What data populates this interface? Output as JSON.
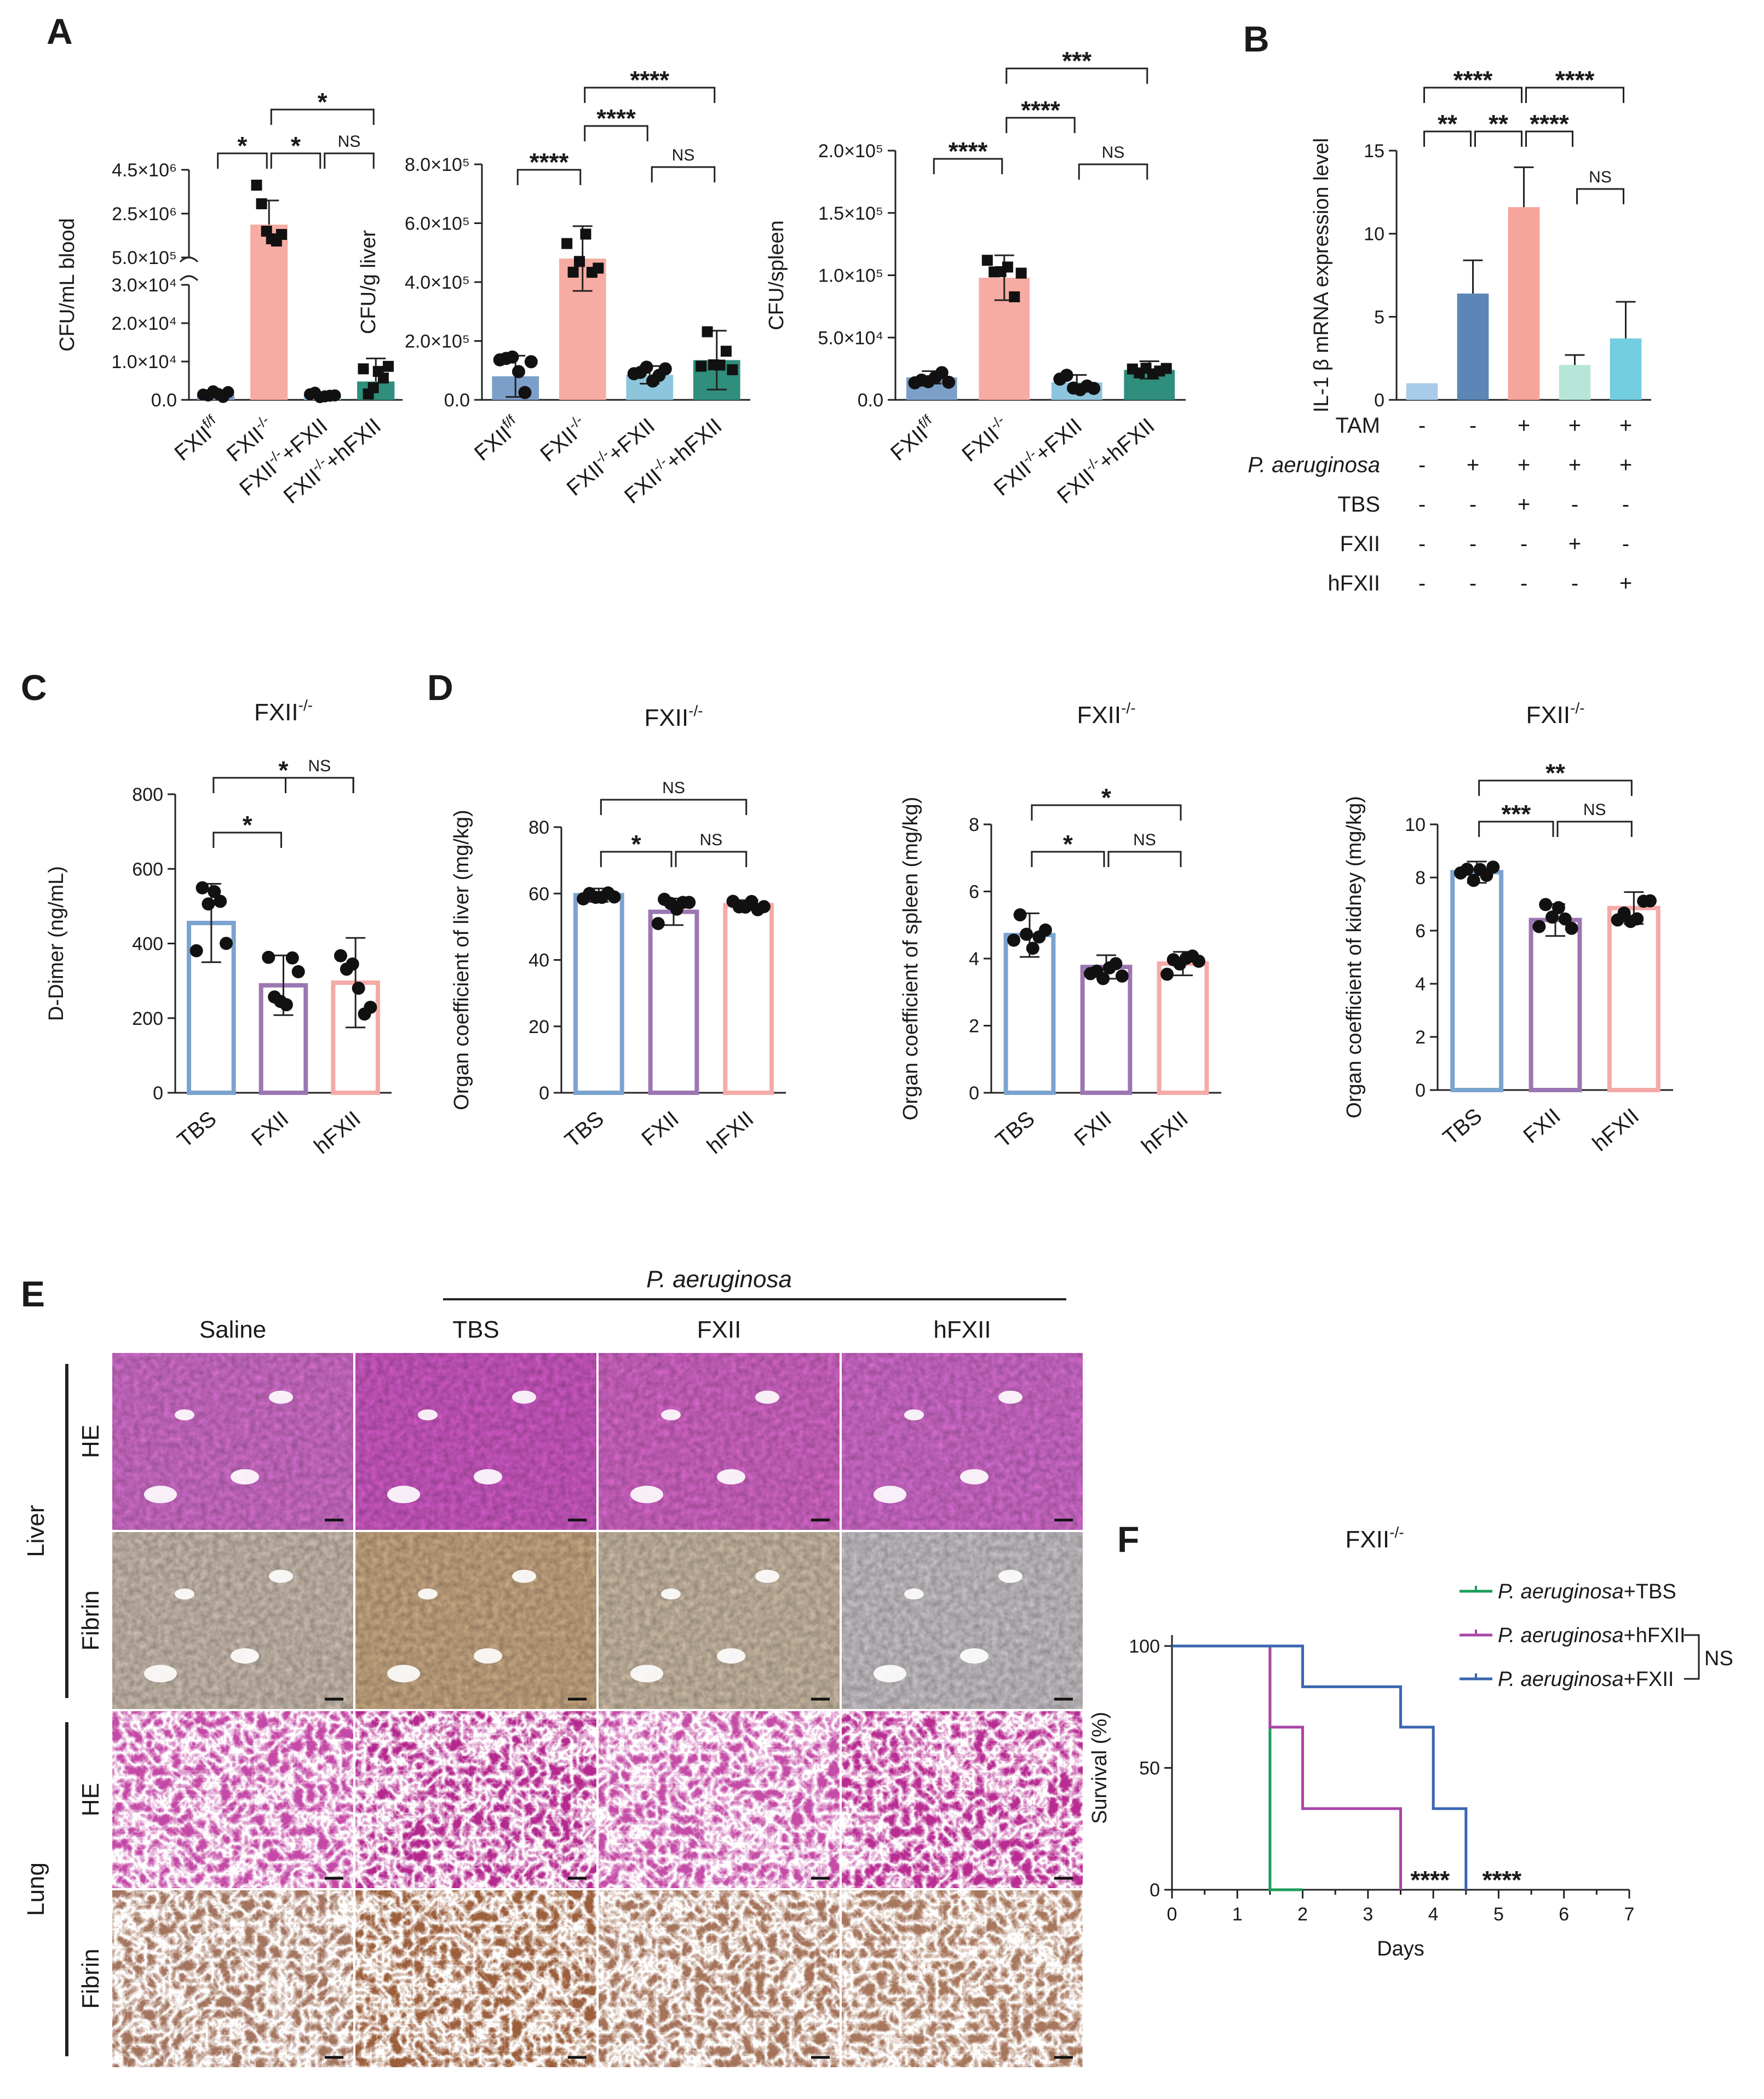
{
  "panel_letters": {
    "A": "A",
    "B": "B",
    "C": "C",
    "D": "D",
    "E": "E",
    "F": "F"
  },
  "chart_data": [
    {
      "id": "A1",
      "type": "bar",
      "ylabel": "CFU/mL blood",
      "categories": [
        "FXIIf/f",
        "FXII-/-",
        "FXII-/-+FXII",
        "FXII-/-+hFXII"
      ],
      "values": [
        1500,
        2000000,
        1200,
        4800
      ],
      "errors": [
        1000,
        1100000,
        800,
        6000
      ],
      "yaxis": "broken",
      "ylim_lower": [
        0,
        30000
      ],
      "ylim_upper": [
        500000,
        4500000
      ],
      "yticks_lower": [
        "0.0",
        "1.0×10⁴",
        "2.0×10⁴",
        "3.0×10⁴"
      ],
      "yticks_upper": [
        "5.0×10⁵",
        "2.5×10⁶",
        "4.5×10⁶"
      ],
      "colors": [
        "#7c9fc9",
        "#f7aca3",
        "#8dc5dc",
        "#2f8f7c"
      ],
      "sig": [
        {
          "a": 0,
          "b": 1,
          "label": "*"
        },
        {
          "a": 1,
          "b": 2,
          "label": "*"
        },
        {
          "a": 2,
          "b": 3,
          "label": "NS"
        },
        {
          "a": 1,
          "b": 3,
          "label": "*"
        }
      ]
    },
    {
      "id": "A2",
      "type": "bar",
      "ylabel": "CFU/g liver",
      "categories": [
        "FXIIf/f",
        "FXII-/-",
        "FXII-/-+FXII",
        "FXII-/-+hFXII"
      ],
      "values": [
        80000,
        480000,
        85000,
        135000
      ],
      "errors": [
        70000,
        110000,
        30000,
        100000
      ],
      "ylim": [
        0,
        800000
      ],
      "yticks": [
        "0.0",
        "2.0×10⁵",
        "4.0×10⁵",
        "6.0×10⁵",
        "8.0×10⁵"
      ],
      "colors": [
        "#7c9fc9",
        "#f7aca3",
        "#8dc5dc",
        "#2f8f7c"
      ],
      "sig": [
        {
          "a": 0,
          "b": 1,
          "label": "****"
        },
        {
          "a": 1,
          "b": 2,
          "label": "****"
        },
        {
          "a": 2,
          "b": 3,
          "label": "NS"
        },
        {
          "a": 1,
          "b": 3,
          "label": "****"
        }
      ]
    },
    {
      "id": "A3",
      "type": "bar",
      "ylabel": "CFU/spleen",
      "categories": [
        "FXIIf/f",
        "FXII-/-",
        "FXII-/-+FXII",
        "FXII-/-+hFXII"
      ],
      "values": [
        18000,
        98000,
        14000,
        24000
      ],
      "errors": [
        5000,
        18000,
        6000,
        7000
      ],
      "ylim": [
        0,
        200000
      ],
      "yticks": [
        "0.0",
        "5.0×10⁴",
        "1.0×10⁵",
        "1.5×10⁵",
        "2.0×10⁵"
      ],
      "colors": [
        "#7c9fc9",
        "#f7aca3",
        "#8dc5dc",
        "#2f8f7c"
      ],
      "sig": [
        {
          "a": 0,
          "b": 1,
          "label": "****"
        },
        {
          "a": 1,
          "b": 2,
          "label": "****"
        },
        {
          "a": 2,
          "b": 3,
          "label": "NS"
        },
        {
          "a": 1,
          "b": 3,
          "label": "***"
        }
      ]
    },
    {
      "id": "B",
      "type": "bar",
      "ylabel": "IL-1 β mRNA expression level",
      "ylim": [
        0,
        15
      ],
      "yticks": [
        "0",
        "5",
        "10",
        "15"
      ],
      "values": [
        1,
        6.4,
        11.6,
        2.1,
        3.7
      ],
      "errors": [
        0,
        2,
        2.4,
        0.6,
        2.2
      ],
      "colors": [
        "#a8cbe9",
        "#5b86b5",
        "#f7a49a",
        "#b5e6d8",
        "#73cde1"
      ],
      "conditions": [
        {
          "name": "TAM",
          "signs": [
            "-",
            "-",
            "+",
            "+",
            "+"
          ]
        },
        {
          "name": "P. aeruginosa",
          "signs": [
            "-",
            "+",
            "+",
            "+",
            "+"
          ]
        },
        {
          "name": "TBS",
          "signs": [
            "-",
            "-",
            "+",
            "-",
            "-"
          ]
        },
        {
          "name": "FXII",
          "signs": [
            "-",
            "-",
            "-",
            "+",
            "-"
          ]
        },
        {
          "name": "hFXII",
          "signs": [
            "-",
            "-",
            "-",
            "-",
            "+"
          ]
        }
      ],
      "sig": [
        {
          "a": 0,
          "b": 1,
          "label": "**"
        },
        {
          "a": 1,
          "b": 2,
          "label": "**"
        },
        {
          "a": 2,
          "b": 3,
          "label": "****"
        },
        {
          "a": 3,
          "b": 4,
          "label": "NS"
        },
        {
          "a": 0,
          "b": 2,
          "label": "****"
        },
        {
          "a": 2,
          "b": 4,
          "label": "****"
        }
      ]
    },
    {
      "id": "C",
      "type": "bar",
      "title": "FXII-/-",
      "ylabel": "D-Dimer (ng/mL)",
      "categories": [
        "TBS",
        "FXII",
        "hFXII"
      ],
      "values": [
        455,
        288,
        295
      ],
      "errors": [
        105,
        80,
        120
      ],
      "ylim": [
        0,
        800
      ],
      "yticks": [
        "0",
        "200",
        "400",
        "600",
        "800"
      ],
      "colors": [
        "#7ba3cf",
        "#9c76b3",
        "#f4aaa6"
      ],
      "sig": [
        {
          "a": 0,
          "b": 1,
          "label": "*"
        },
        {
          "a": 1,
          "b": 2,
          "label": "NS"
        },
        {
          "a": 0,
          "b": 2,
          "label": "*"
        }
      ]
    },
    {
      "id": "D1",
      "type": "bar",
      "title": "FXII-/-",
      "ylabel": "Organ coefficient of liver (mg/kg)",
      "categories": [
        "TBS",
        "FXII",
        "hFXII"
      ],
      "values": [
        59.5,
        54.5,
        56.5
      ],
      "errors": [
        2,
        4,
        1.5
      ],
      "ylim": [
        0,
        80
      ],
      "yticks": [
        "0",
        "20",
        "40",
        "60",
        "80"
      ],
      "colors": [
        "#7ba3cf",
        "#9c76b3",
        "#f4aaa6"
      ],
      "sig": [
        {
          "a": 0,
          "b": 1,
          "label": "*"
        },
        {
          "a": 1,
          "b": 2,
          "label": "NS"
        },
        {
          "a": 0,
          "b": 2,
          "label": "NS"
        }
      ]
    },
    {
      "id": "D2",
      "type": "bar",
      "title": "FXII-/-",
      "ylabel": "Organ coefficient of spleen (mg/kg)",
      "categories": [
        "TBS",
        "FXII",
        "hFXII"
      ],
      "values": [
        4.7,
        3.75,
        3.85
      ],
      "errors": [
        0.65,
        0.35,
        0.35
      ],
      "ylim": [
        0,
        8
      ],
      "yticks": [
        "0",
        "2",
        "4",
        "6",
        "8"
      ],
      "colors": [
        "#7ba3cf",
        "#9c76b3",
        "#f4aaa6"
      ],
      "sig": [
        {
          "a": 0,
          "b": 1,
          "label": "*"
        },
        {
          "a": 1,
          "b": 2,
          "label": "NS"
        },
        {
          "a": 0,
          "b": 2,
          "label": "*"
        }
      ]
    },
    {
      "id": "D3",
      "type": "bar",
      "title": "FXII-/-",
      "ylabel": "Organ coefficient of kidney (mg/kg)",
      "categories": [
        "TBS",
        "FXII",
        "hFXII"
      ],
      "values": [
        8.2,
        6.4,
        6.85
      ],
      "errors": [
        0.4,
        0.6,
        0.6
      ],
      "ylim": [
        0,
        10
      ],
      "yticks": [
        "0",
        "2",
        "4",
        "6",
        "8",
        "10"
      ],
      "colors": [
        "#7ba3cf",
        "#9c76b3",
        "#f4aaa6"
      ],
      "sig": [
        {
          "a": 0,
          "b": 1,
          "label": "***"
        },
        {
          "a": 1,
          "b": 2,
          "label": "NS"
        },
        {
          "a": 0,
          "b": 2,
          "label": "**"
        }
      ]
    },
    {
      "id": "F",
      "type": "line",
      "title": "FXII-/-",
      "xlabel": "Days",
      "ylabel": "Survival (%)",
      "xlim": [
        0,
        7
      ],
      "ylim": [
        0,
        100
      ],
      "xticks": [
        "0",
        "1",
        "2",
        "3",
        "4",
        "5",
        "6",
        "7"
      ],
      "yticks": [
        "0",
        "50",
        "100"
      ],
      "series": [
        {
          "name": "P. aeruginosa",
          "suffix": "+TBS",
          "color": "#1a9d5a",
          "steps": [
            [
              0,
              100
            ],
            [
              1.5,
              100
            ],
            [
              1.5,
              0
            ],
            [
              2,
              0
            ]
          ]
        },
        {
          "name": "P. aeruginosa",
          "suffix": "+hFXII",
          "color": "#a745a8",
          "steps": [
            [
              0,
              100
            ],
            [
              1.5,
              100
            ],
            [
              1.5,
              66.7
            ],
            [
              2,
              66.7
            ],
            [
              2,
              33.3
            ],
            [
              3.5,
              33.3
            ],
            [
              3.5,
              0
            ]
          ]
        },
        {
          "name": "P. aeruginosa",
          "suffix": "+FXII",
          "color": "#3a66b0",
          "steps": [
            [
              0,
              100
            ],
            [
              2,
              100
            ],
            [
              2,
              83.3
            ],
            [
              3.5,
              83.3
            ],
            [
              3.5,
              66.7
            ],
            [
              4,
              66.7
            ],
            [
              4,
              33.3
            ],
            [
              4.5,
              33.3
            ],
            [
              4.5,
              0
            ]
          ]
        }
      ],
      "annotations": [
        {
          "x": 3.95,
          "text": "****"
        },
        {
          "x": 5.05,
          "text": "****"
        },
        {
          "text": "NS"
        }
      ]
    }
  ],
  "panel_E": {
    "group_label": "P. aeruginosa",
    "columns": [
      "Saline",
      "TBS",
      "FXII",
      "hFXII"
    ],
    "organs": [
      {
        "name": "Liver",
        "rows": [
          "HE",
          "Fibrin"
        ]
      },
      {
        "name": "Lung",
        "rows": [
          "HE",
          "Fibrin"
        ]
      }
    ]
  }
}
